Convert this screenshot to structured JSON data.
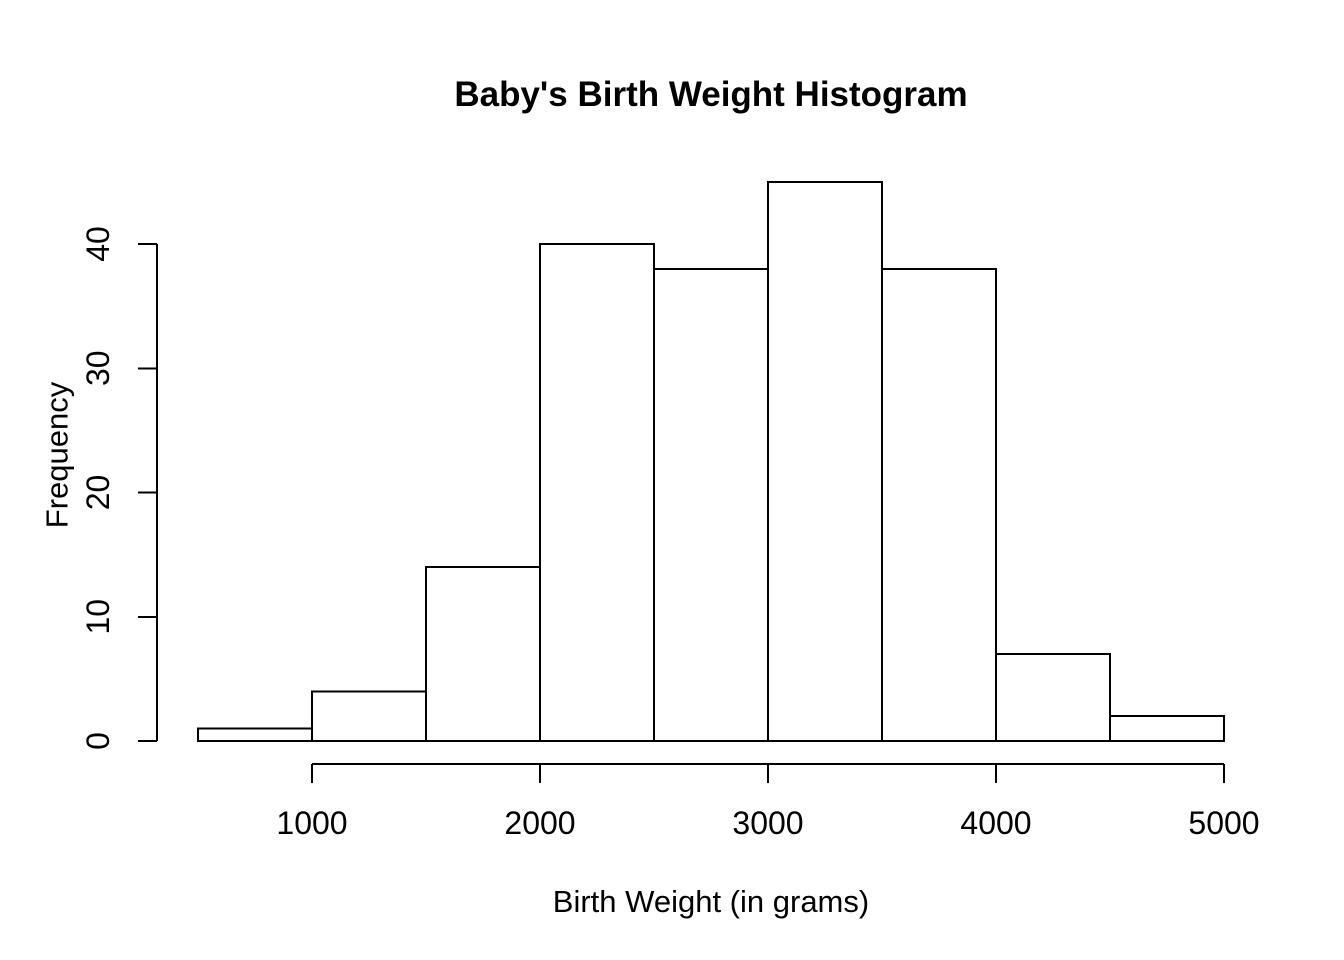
{
  "page": {
    "background": "#ffffff"
  },
  "chart_data": {
    "type": "bar",
    "chart_kind": "histogram",
    "title": "Baby's Birth Weight Histogram",
    "xlabel": "Birth Weight (in grams)",
    "ylabel": "Frequency",
    "bin_edges": [
      500,
      1000,
      1500,
      2000,
      2500,
      3000,
      3500,
      4000,
      4500,
      5000
    ],
    "counts": [
      1,
      4,
      14,
      40,
      38,
      45,
      38,
      7,
      2
    ],
    "x_ticks": [
      1000,
      2000,
      3000,
      4000,
      5000
    ],
    "y_ticks": [
      0,
      10,
      20,
      30,
      40
    ],
    "xlim": [
      500,
      5000
    ],
    "ylim": [
      0,
      40
    ],
    "grid": false,
    "legend": "none",
    "bar_fill": "#ffffff",
    "stroke_color": "#000000",
    "text_color": "#000000"
  }
}
